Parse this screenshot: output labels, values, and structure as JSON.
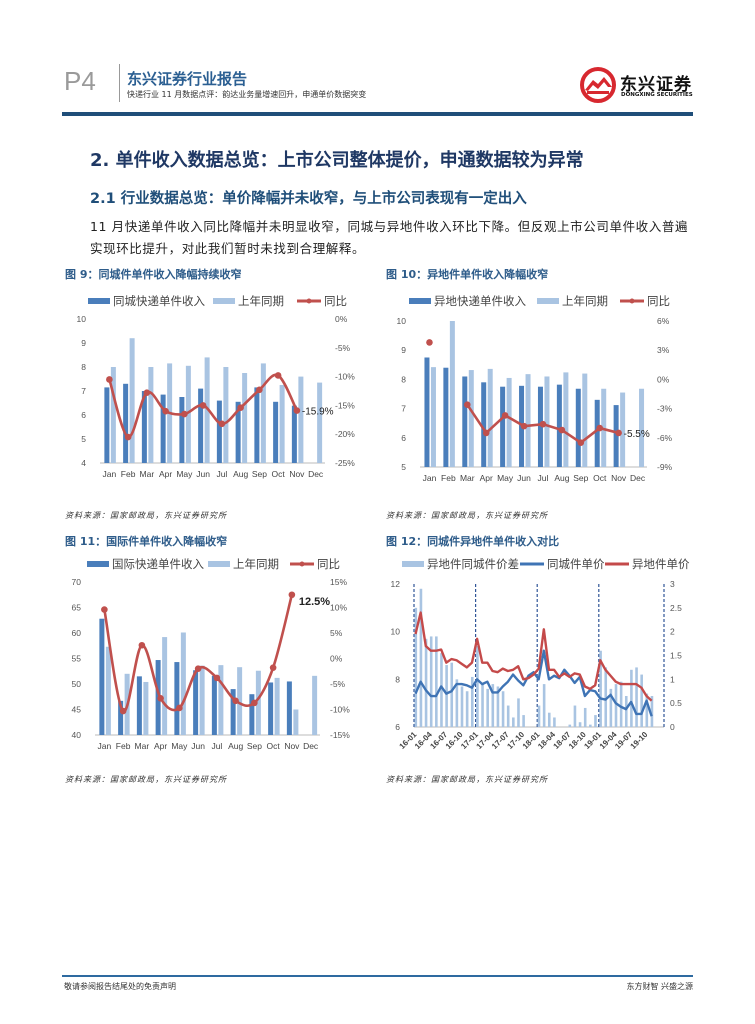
{
  "header": {
    "page": "P4",
    "title": "东兴证券行业报告",
    "subtitle": "快递行业 11 月数据点评：韵达业务量增速回升，申通单价数据突变",
    "logo_text": "东兴证券",
    "logo_en": "DONGXING SECURITIES",
    "logo_color": "#d7282f",
    "rule_color": "#1f4e79"
  },
  "section": {
    "h2": "2. 单件收入数据总览：上市公司整体提价，申通数据较为异常",
    "h3": "2.1 行业数据总览：单价降幅并未收窄，与上市公司表现有一定出入",
    "paragraph_lines": [
      "11 月快递单件收入同比降幅并未明显收窄，同城与异地件收入环比下降。但反观上市公司单件收入普遍",
      "实现环比提升，对此我们暂时未找到合理解释。"
    ]
  },
  "chart_data": [
    {
      "type": "bar+line",
      "title": "图 9：同城件单件收入降幅持续收窄",
      "source": "资料来源：国家邮政局，东兴证券研究所",
      "categories": [
        "Jan",
        "Feb",
        "Mar",
        "Apr",
        "May",
        "Jun",
        "Jul",
        "Aug",
        "Sep",
        "Oct",
        "Nov",
        "Dec"
      ],
      "ylim": [
        4,
        10
      ],
      "y_tick_labels": [
        "4",
        "5",
        "6",
        "7",
        "8",
        "9",
        "10"
      ],
      "y2lim": [
        -25,
        0
      ],
      "y2_tick_labels": [
        "-25%",
        "-20%",
        "-15%",
        "-10%",
        "-5%",
        "0%"
      ],
      "series": [
        {
          "name": "同城快递单件收入",
          "type": "bar",
          "axis": "left",
          "color": "#4a7ebb",
          "values": [
            7.15,
            7.3,
            7.0,
            6.85,
            6.75,
            7.1,
            6.6,
            6.55,
            7.15,
            6.55,
            6.39,
            null
          ]
        },
        {
          "name": "上年同期",
          "type": "bar",
          "axis": "left",
          "color": "#a9c4e2",
          "values": [
            8.0,
            9.2,
            8.0,
            8.15,
            8.05,
            8.4,
            8.0,
            7.75,
            8.15,
            7.25,
            7.6,
            7.35
          ]
        },
        {
          "name": "同比",
          "type": "line",
          "axis": "right",
          "color": "#c0504d",
          "smooth": true,
          "values": [
            -10.5,
            -20.5,
            -12.8,
            -16.0,
            -16.5,
            -15.0,
            -18.2,
            -15.4,
            -12.3,
            -9.8,
            -15.9,
            null
          ]
        }
      ],
      "data_label": {
        "index": 10,
        "text": "-15.9%"
      }
    },
    {
      "type": "bar+line",
      "title": "图 10：异地件单件收入降幅收窄",
      "source": "资料来源：国家邮政局，东兴证券研究所",
      "categories": [
        "Jan",
        "Feb",
        "Mar",
        "Apr",
        "May",
        "Jun",
        "Jul",
        "Aug",
        "Sep",
        "Oct",
        "Nov",
        "Dec"
      ],
      "ylim": [
        5,
        10
      ],
      "y_tick_labels": [
        "5",
        "6",
        "7",
        "8",
        "9",
        "10"
      ],
      "y2lim": [
        -9,
        6
      ],
      "y2_tick_labels": [
        "-9%",
        "-6%",
        "-3%",
        "0%",
        "3%",
        "6%"
      ],
      "series": [
        {
          "name": "异地快递单件收入",
          "type": "bar",
          "axis": "left",
          "color": "#4a7ebb",
          "values": [
            8.75,
            8.4,
            8.1,
            7.9,
            7.75,
            7.78,
            7.75,
            7.82,
            7.68,
            7.3,
            7.12,
            null
          ]
        },
        {
          "name": "上年同期",
          "type": "bar",
          "axis": "left",
          "color": "#a9c4e2",
          "values": [
            8.42,
            10.0,
            8.32,
            8.36,
            8.05,
            8.18,
            8.1,
            8.24,
            8.2,
            7.68,
            7.55,
            7.68
          ]
        },
        {
          "name": "同比",
          "type": "line",
          "axis": "right",
          "color": "#c0504d",
          "smooth": false,
          "values": [
            3.8,
            null,
            -2.6,
            -5.5,
            -3.7,
            -4.8,
            -4.6,
            -5.2,
            -6.5,
            -5.0,
            -5.5,
            null
          ]
        }
      ],
      "data_label": {
        "index": 10,
        "text": "-5.5%"
      }
    },
    {
      "type": "bar+line",
      "title": "图 11：国际件单件收入降幅收窄",
      "source": "资料来源：国家邮政局，东兴证券研究所",
      "categories": [
        "Jan",
        "Feb",
        "Mar",
        "Apr",
        "May",
        "Jun",
        "Jul",
        "Aug",
        "Sep",
        "Oct",
        "Nov",
        "Dec"
      ],
      "ylim": [
        40,
        70
      ],
      "y_tick_labels": [
        "40",
        "45",
        "50",
        "55",
        "60",
        "65",
        "70"
      ],
      "y2lim": [
        -15,
        15
      ],
      "y2_tick_labels": [
        "-15%",
        "-10%",
        "-5%",
        "0%",
        "5%",
        "10%",
        "15%"
      ],
      "series": [
        {
          "name": "国际快递单件收入",
          "type": "bar",
          "axis": "left",
          "color": "#4a7ebb",
          "values": [
            62.8,
            46.7,
            51.5,
            54.7,
            54.3,
            52.7,
            51.6,
            49.0,
            48.0,
            50.3,
            50.5,
            null
          ]
        },
        {
          "name": "上年同期",
          "type": "bar",
          "axis": "left",
          "color": "#a9c4e2",
          "values": [
            57.3,
            52.0,
            50.4,
            59.2,
            60.1,
            53.6,
            53.7,
            53.3,
            52.6,
            51.2,
            45.0,
            51.6
          ]
        },
        {
          "name": "同比",
          "type": "line",
          "axis": "right",
          "color": "#c0504d",
          "smooth": true,
          "values": [
            9.6,
            -10.3,
            2.6,
            -7.8,
            -9.7,
            -2.0,
            -3.8,
            -8.3,
            -8.7,
            -1.8,
            12.5,
            null
          ]
        }
      ],
      "data_label": {
        "index": 10,
        "text": "12.5%"
      }
    },
    {
      "type": "bar+line",
      "title": "图 12：同城件异地件单件收入对比",
      "source": "资料来源：国家邮政局，东兴证券研究所",
      "categories": [
        "16-01",
        "16-02",
        "16-03",
        "16-04",
        "16-05",
        "16-06",
        "16-07",
        "16-08",
        "16-09",
        "16-10",
        "16-11",
        "16-12",
        "17-01",
        "17-02",
        "17-03",
        "17-04",
        "17-05",
        "17-06",
        "17-07",
        "17-08",
        "17-09",
        "17-10",
        "17-11",
        "17-12",
        "18-01",
        "18-02",
        "18-03",
        "18-04",
        "18-05",
        "18-06",
        "18-07",
        "18-08",
        "18-09",
        "18-10",
        "18-11",
        "18-12",
        "19-01",
        "19-02",
        "19-03",
        "19-04",
        "19-05",
        "19-06",
        "19-07",
        "19-08",
        "19-09",
        "19-10",
        "19-11"
      ],
      "x_tick_labels": [
        "16-01",
        "16-04",
        "16-07",
        "16-10",
        "17-01",
        "17-04",
        "17-07",
        "17-10",
        "18-01",
        "18-04",
        "18-07",
        "18-10",
        "19-01",
        "19-04",
        "19-07",
        "19-10"
      ],
      "year_dividers": [
        "16-01",
        "17-01",
        "18-01",
        "19-01"
      ],
      "ylim": [
        6,
        12
      ],
      "y_tick_labels": [
        "6",
        "8",
        "10",
        "12"
      ],
      "y2lim": [
        0,
        3
      ],
      "y2_tick_labels": [
        "0",
        "0.5",
        "1",
        "1.5",
        "2",
        "2.5",
        "3"
      ],
      "series": [
        {
          "name": "异地件同城件价差",
          "type": "bar",
          "axis": "right",
          "color": "#a9c4e2",
          "values": [
            2.5,
            2.9,
            1.85,
            1.9,
            1.9,
            1.55,
            1.3,
            1.35,
            1.0,
            0.85,
            0.75,
            1.05,
            1.7,
            0.9,
            0.8,
            0.9,
            0.85,
            0.75,
            0.45,
            0.2,
            0.6,
            0.25,
            0,
            0,
            0.45,
            0.9,
            0.3,
            0.2,
            0,
            0,
            0.05,
            0.45,
            0.1,
            0.4,
            0.05,
            0.25,
            1.6,
            1.25,
            0.8,
            0.9,
            0.95,
            0.65,
            1.2,
            1.25,
            1.1,
            0.7,
            0.65
          ]
        },
        {
          "name": "同城件单价",
          "type": "line",
          "axis": "left",
          "color": "#3f74b5",
          "values": [
            7.4,
            7.9,
            7.55,
            7.3,
            7.3,
            7.7,
            7.4,
            7.5,
            7.8,
            7.8,
            7.75,
            7.65,
            8.0,
            7.8,
            7.9,
            7.45,
            7.45,
            7.7,
            7.9,
            8.2,
            7.95,
            7.75,
            8.15,
            8.3,
            8.0,
            9.2,
            8.0,
            8.15,
            8.05,
            8.4,
            8.15,
            7.85,
            8.1,
            7.3,
            7.55,
            7.5,
            7.2,
            7.15,
            7.35,
            7.0,
            6.85,
            6.75,
            7.05,
            6.55,
            6.55,
            7.1,
            6.45
          ]
        },
        {
          "name": "异地件单价",
          "type": "line",
          "axis": "left",
          "color": "#c44a4a",
          "values": [
            9.9,
            10.8,
            9.4,
            9.2,
            9.2,
            9.25,
            8.7,
            8.85,
            8.8,
            8.65,
            8.5,
            8.7,
            9.7,
            8.7,
            8.7,
            8.35,
            8.3,
            8.45,
            8.35,
            8.4,
            8.55,
            8.0,
            8.05,
            8.2,
            8.45,
            10.1,
            8.4,
            8.4,
            8.1,
            8.25,
            8.1,
            8.25,
            8.2,
            7.7,
            7.6,
            7.75,
            8.8,
            8.4,
            8.15,
            7.9,
            7.8,
            7.8,
            7.8,
            7.8,
            7.65,
            7.3,
            7.1
          ]
        }
      ]
    }
  ],
  "footer": {
    "disclaimer": "敬请参阅报告结尾处的免责声明",
    "motto": "东方财智 兴盛之源"
  }
}
